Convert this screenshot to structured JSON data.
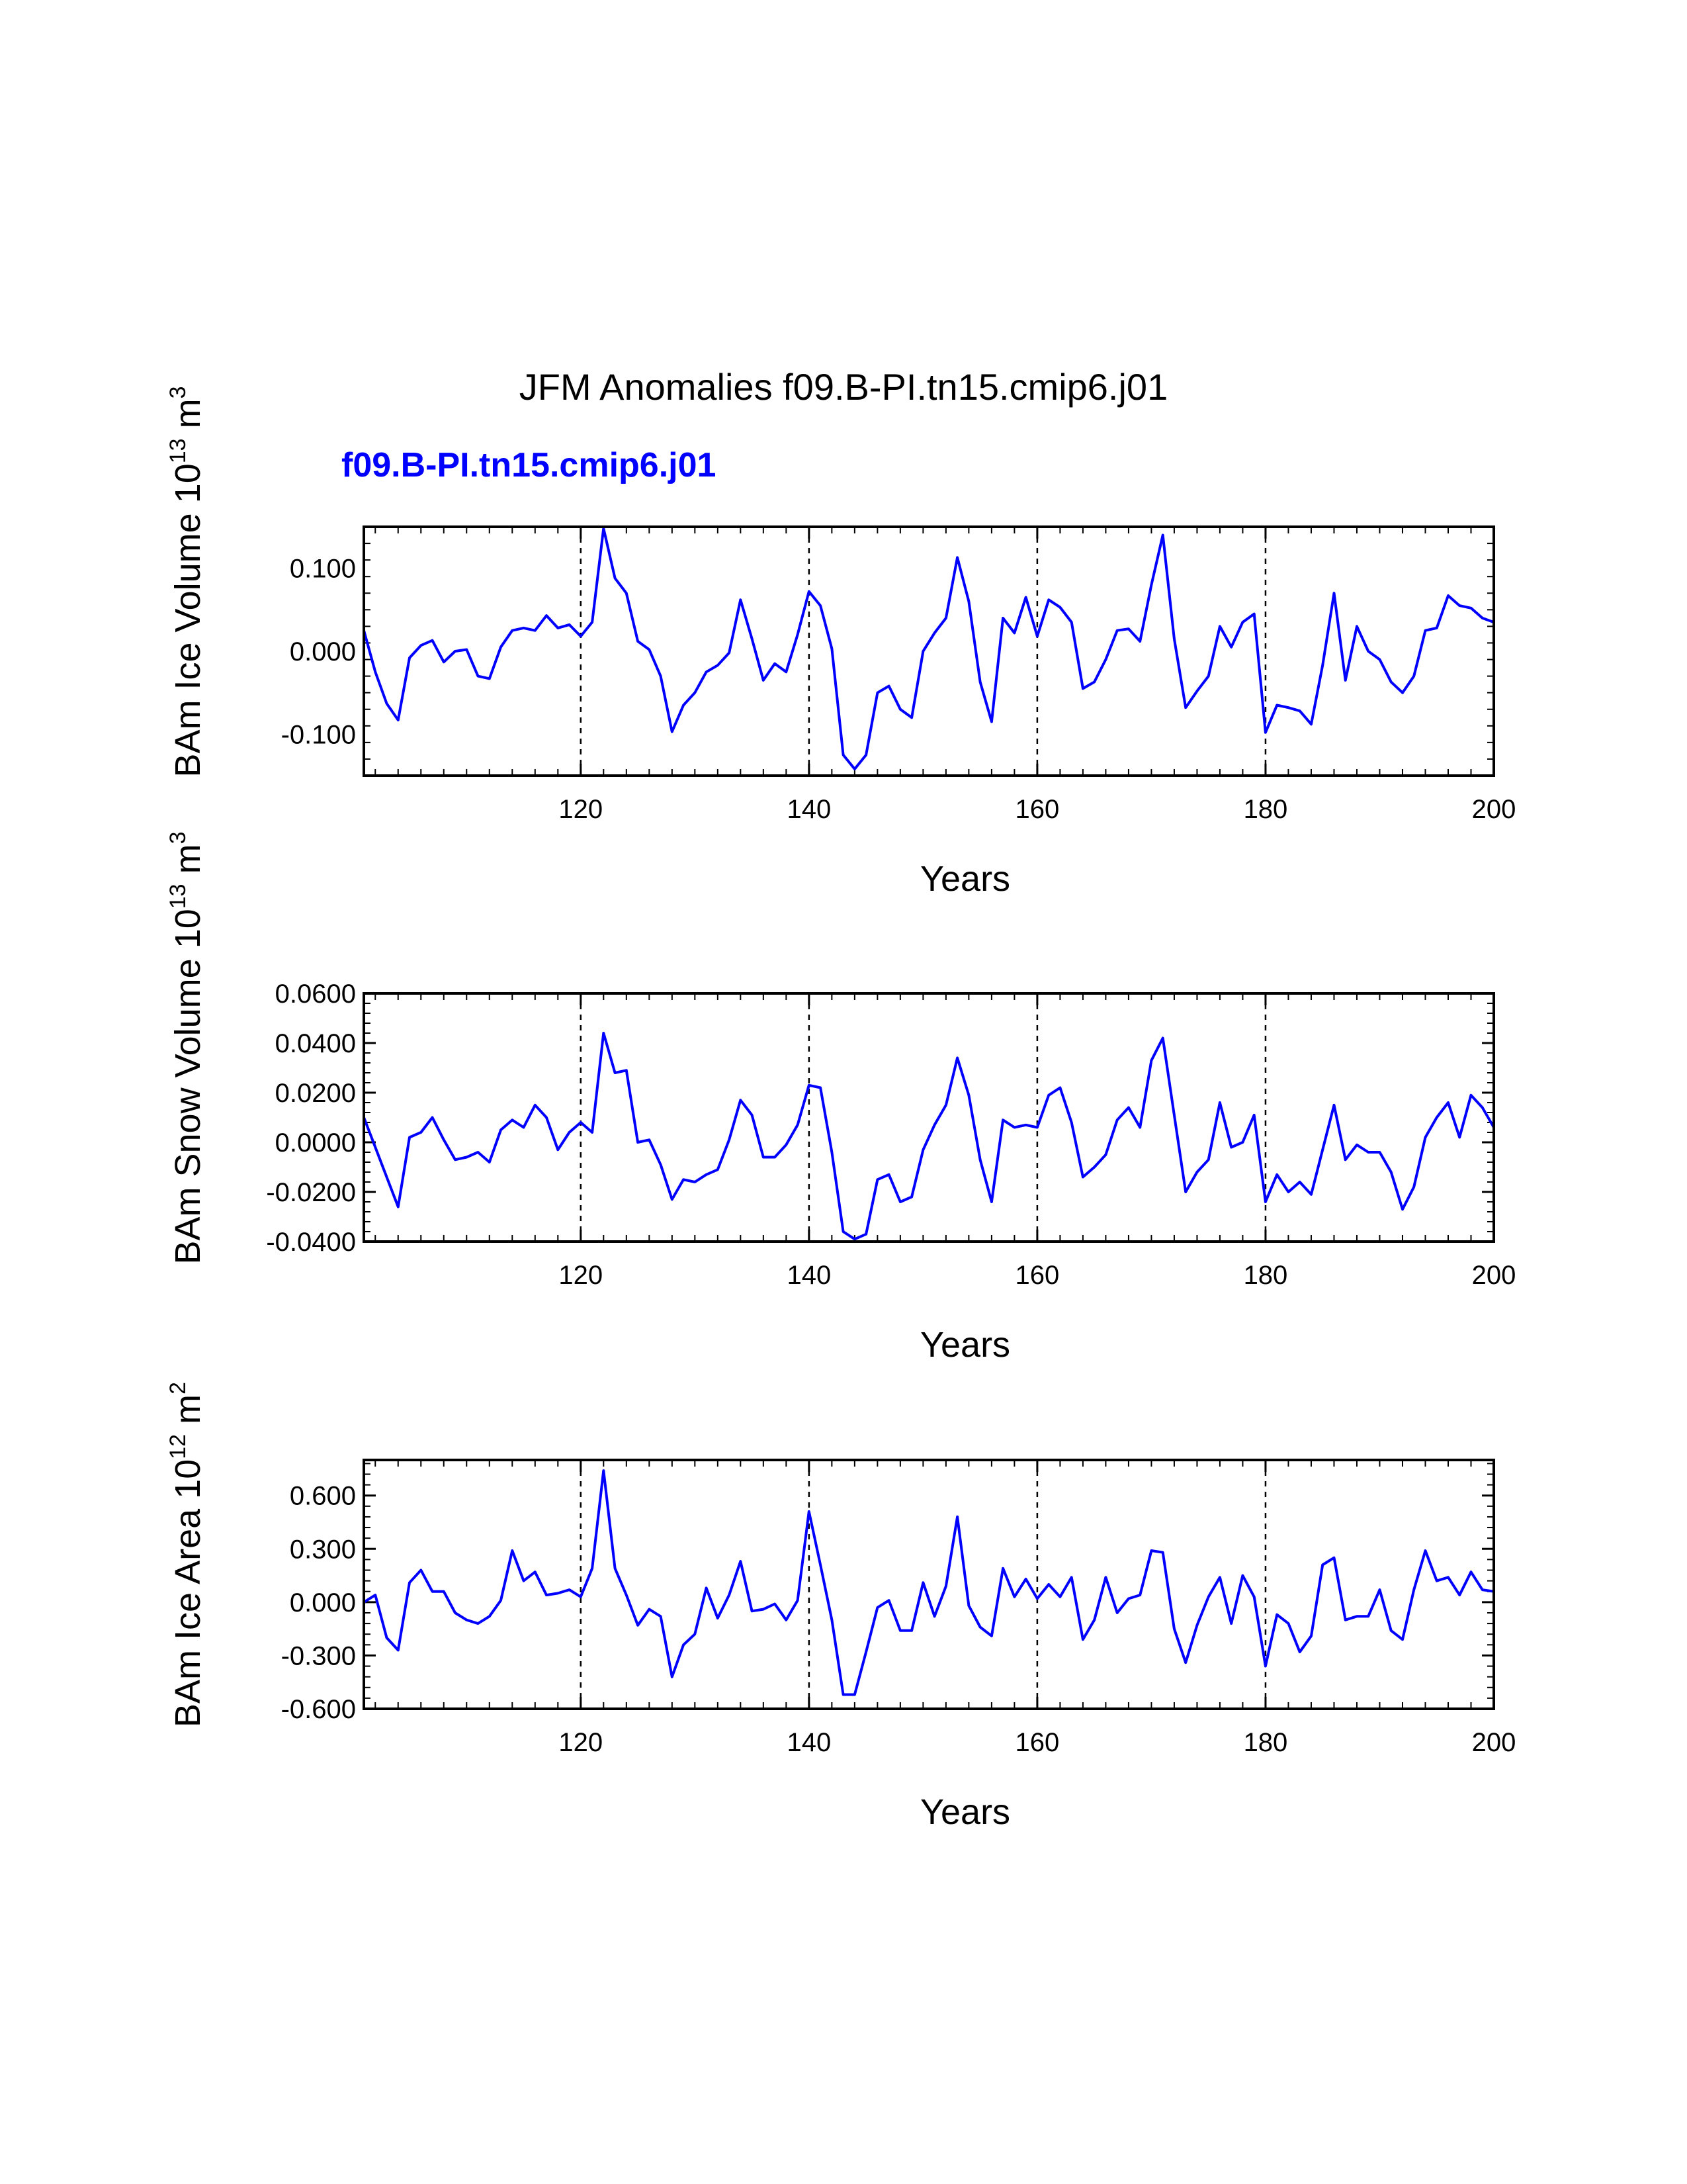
{
  "title": "JFM Anomalies f09.B-PI.tn15.cmip6.j01",
  "subtitle": "f09.B-PI.tn15.cmip6.j01",
  "colors": {
    "series": "#0000ff",
    "axes": "#000000"
  },
  "chart_data": [
    {
      "type": "line",
      "ylabel_main": "BAm Ice Volume 10",
      "ylabel_sup": "13",
      "ylabel_unit": " m",
      "ylabel_unit_sup": "3",
      "xlabel": "Years",
      "xlim": [
        101,
        200
      ],
      "ylim": [
        -0.15,
        0.15
      ],
      "xticks": [
        120,
        140,
        160,
        180,
        200
      ],
      "yticks": [
        -0.1,
        0.0,
        0.1
      ],
      "ytick_labels": [
        "-0.100",
        "0.000",
        "0.100"
      ],
      "ref_lines_x": [
        120,
        140,
        160,
        180
      ],
      "x_start": 101,
      "values": [
        0.025,
        -0.025,
        -0.063,
        -0.083,
        -0.008,
        0.007,
        0.013,
        -0.013,
        0.0,
        0.002,
        -0.03,
        -0.033,
        0.005,
        0.025,
        0.028,
        0.025,
        0.043,
        0.028,
        0.032,
        0.018,
        0.035,
        0.148,
        0.088,
        0.07,
        0.012,
        0.002,
        -0.03,
        -0.097,
        -0.065,
        -0.05,
        -0.025,
        -0.017,
        -0.002,
        0.062,
        0.015,
        -0.035,
        -0.015,
        -0.025,
        0.02,
        0.072,
        0.055,
        0.003,
        -0.125,
        -0.142,
        -0.125,
        -0.05,
        -0.042,
        -0.07,
        -0.08,
        0.0,
        0.022,
        0.04,
        0.113,
        0.06,
        -0.037,
        -0.085,
        0.04,
        0.022,
        0.065,
        0.018,
        0.062,
        0.053,
        0.035,
        -0.045,
        -0.037,
        -0.01,
        0.025,
        0.027,
        0.012,
        0.08,
        0.14,
        0.015,
        -0.068,
        -0.048,
        -0.03,
        0.03,
        0.005,
        0.035,
        0.045,
        -0.098,
        -0.065,
        -0.068,
        -0.072,
        -0.088,
        -0.017,
        0.07,
        -0.035,
        0.03,
        0.0,
        -0.01,
        -0.037,
        -0.05,
        -0.03,
        0.025,
        0.028,
        0.067,
        0.055,
        0.052,
        0.04,
        0.035
      ]
    },
    {
      "type": "line",
      "ylabel_main": "BAm Snow Volume 10",
      "ylabel_sup": "13",
      "ylabel_unit": " m",
      "ylabel_unit_sup": "3",
      "xlabel": "Years",
      "xlim": [
        101,
        200
      ],
      "ylim": [
        -0.04,
        0.06
      ],
      "xticks": [
        120,
        140,
        160,
        180,
        200
      ],
      "yticks": [
        -0.04,
        -0.02,
        0.0,
        0.02,
        0.04,
        0.06
      ],
      "ytick_labels": [
        "-0.0400",
        "-0.0200",
        "0.0000",
        "0.0200",
        "0.0400",
        "0.0600"
      ],
      "ref_lines_x": [
        120,
        140,
        160,
        180
      ],
      "x_start": 101,
      "values": [
        0.01,
        -0.002,
        -0.014,
        -0.026,
        0.002,
        0.004,
        0.01,
        0.001,
        -0.007,
        -0.006,
        -0.004,
        -0.008,
        0.005,
        0.009,
        0.006,
        0.015,
        0.01,
        -0.003,
        0.004,
        0.008,
        0.004,
        0.044,
        0.028,
        0.029,
        0.0,
        0.001,
        -0.009,
        -0.023,
        -0.015,
        -0.016,
        -0.013,
        -0.011,
        0.001,
        0.017,
        0.011,
        -0.006,
        -0.006,
        -0.001,
        0.007,
        0.023,
        0.022,
        -0.004,
        -0.036,
        -0.039,
        -0.037,
        -0.015,
        -0.013,
        -0.024,
        -0.022,
        -0.003,
        0.007,
        0.015,
        0.034,
        0.019,
        -0.007,
        -0.024,
        0.009,
        0.006,
        0.007,
        0.006,
        0.019,
        0.022,
        0.008,
        -0.014,
        -0.01,
        -0.005,
        0.009,
        0.014,
        0.006,
        0.033,
        0.042,
        0.011,
        -0.02,
        -0.012,
        -0.007,
        0.016,
        -0.002,
        0.0,
        0.011,
        -0.024,
        -0.013,
        -0.02,
        -0.016,
        -0.021,
        -0.003,
        0.015,
        -0.007,
        -0.001,
        -0.004,
        -0.004,
        -0.012,
        -0.027,
        -0.018,
        0.002,
        0.01,
        0.016,
        0.002,
        0.019,
        0.014,
        0.006
      ]
    },
    {
      "type": "line",
      "ylabel_main": "BAm Ice Area 10",
      "ylabel_sup": "12",
      "ylabel_unit": " m",
      "ylabel_unit_sup": "2",
      "xlabel": "Years",
      "xlim": [
        101,
        200
      ],
      "ylim": [
        -0.6,
        0.8
      ],
      "xticks": [
        120,
        140,
        160,
        180,
        200
      ],
      "yticks": [
        -0.6,
        -0.3,
        0.0,
        0.3,
        0.6
      ],
      "ytick_labels": [
        "-0.600",
        "-0.300",
        "0.000",
        "0.300",
        "0.600"
      ],
      "ref_lines_x": [
        120,
        140,
        160,
        180
      ],
      "x_start": 101,
      "values": [
        0.0,
        0.04,
        -0.2,
        -0.27,
        0.11,
        0.18,
        0.06,
        0.06,
        -0.06,
        -0.1,
        -0.12,
        -0.08,
        0.01,
        0.29,
        0.12,
        0.17,
        0.04,
        0.05,
        0.07,
        0.03,
        0.19,
        0.74,
        0.19,
        0.04,
        -0.13,
        -0.04,
        -0.08,
        -0.42,
        -0.24,
        -0.18,
        0.08,
        -0.09,
        0.04,
        0.23,
        -0.05,
        -0.04,
        -0.01,
        -0.1,
        0.01,
        0.51,
        0.21,
        -0.1,
        -0.52,
        -0.52,
        -0.28,
        -0.03,
        0.01,
        -0.16,
        -0.16,
        0.11,
        -0.08,
        0.09,
        0.48,
        -0.02,
        -0.14,
        -0.19,
        0.19,
        0.03,
        0.13,
        0.02,
        0.1,
        0.03,
        0.14,
        -0.21,
        -0.1,
        0.14,
        -0.06,
        0.02,
        0.04,
        0.29,
        0.28,
        -0.15,
        -0.34,
        -0.13,
        0.03,
        0.14,
        -0.12,
        0.15,
        0.03,
        -0.36,
        -0.07,
        -0.12,
        -0.28,
        -0.19,
        0.21,
        0.25,
        -0.1,
        -0.08,
        -0.08,
        0.07,
        -0.16,
        -0.21,
        0.07,
        0.29,
        0.12,
        0.14,
        0.04,
        0.17,
        0.07,
        0.06
      ]
    }
  ]
}
